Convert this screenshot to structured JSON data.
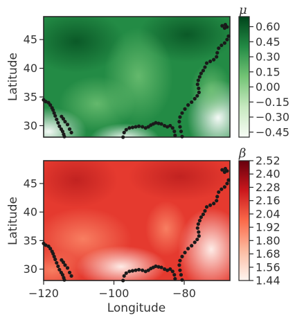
{
  "chart_data": [
    {
      "type": "heatmap",
      "colormap": "greens",
      "xlim": [
        -120,
        -67
      ],
      "ylim": [
        28,
        49
      ],
      "x_ticks": [],
      "y_ticks": [
        "30",
        "35",
        "40",
        "45"
      ],
      "y_tick_values": [
        30,
        35,
        40,
        45
      ],
      "xlabel": "",
      "ylabel": "Latitude",
      "colorbar": {
        "title": "μ",
        "range": [
          -0.5,
          0.7
        ],
        "ticks": [
          "0.60",
          "0.45",
          "0.30",
          "0.15",
          "0.00",
          "−0.15",
          "−0.30",
          "−0.45"
        ],
        "tick_values": [
          0.6,
          0.45,
          0.3,
          0.15,
          0.0,
          -0.15,
          -0.3,
          -0.45
        ]
      }
    },
    {
      "type": "heatmap",
      "colormap": "reds",
      "xlim": [
        -120,
        -67
      ],
      "ylim": [
        28,
        49
      ],
      "x_ticks": [
        "−120",
        "−100",
        "−80"
      ],
      "x_tick_values": [
        -120,
        -100,
        -80
      ],
      "y_ticks": [
        "30",
        "35",
        "40",
        "45"
      ],
      "y_tick_values": [
        30,
        35,
        40,
        45
      ],
      "xlabel": "Longitude",
      "ylabel": "Latitude",
      "colorbar": {
        "title": "β",
        "range": [
          1.44,
          2.52
        ],
        "ticks": [
          "2.52",
          "2.40",
          "2.28",
          "2.16",
          "2.04",
          "1.92",
          "1.80",
          "1.68",
          "1.56",
          "1.44"
        ],
        "tick_values": [
          2.52,
          2.4,
          2.28,
          2.16,
          2.04,
          1.92,
          1.8,
          1.68,
          1.56,
          1.44
        ]
      }
    }
  ]
}
